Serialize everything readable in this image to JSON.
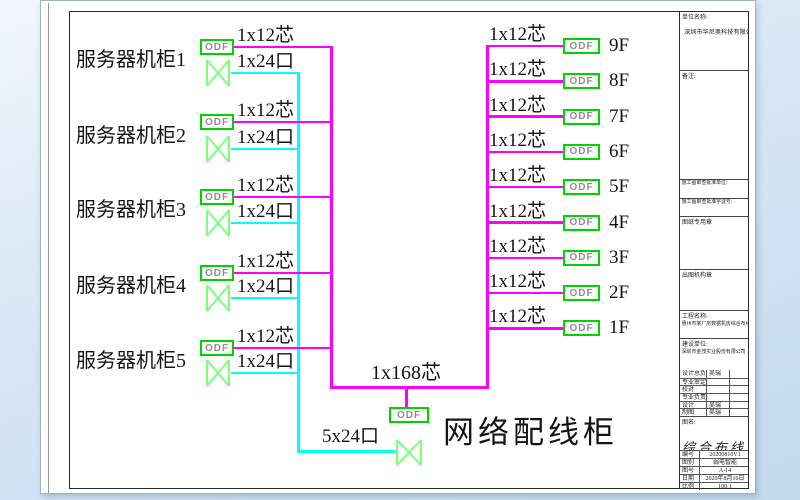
{
  "diagram": {
    "racks": [
      {
        "name": "服务器机柜1",
        "odf_label": "ODF",
        "fiber_label": "1x12芯",
        "copper_label": "1x24口"
      },
      {
        "name": "服务器机柜2",
        "odf_label": "ODF",
        "fiber_label": "1x12芯",
        "copper_label": "1x24口"
      },
      {
        "name": "服务器机柜3",
        "odf_label": "ODF",
        "fiber_label": "1x12芯",
        "copper_label": "1x24口"
      },
      {
        "name": "服务器机柜4",
        "odf_label": "ODF",
        "fiber_label": "1x12芯",
        "copper_label": "1x24口"
      },
      {
        "name": "服务器机柜5",
        "odf_label": "ODF",
        "fiber_label": "1x12芯",
        "copper_label": "1x24口"
      }
    ],
    "floors": [
      {
        "floor": "9F",
        "odf_label": "ODF",
        "fiber_label": "1x12芯"
      },
      {
        "floor": "8F",
        "odf_label": "ODF",
        "fiber_label": "1x12芯"
      },
      {
        "floor": "7F",
        "odf_label": "ODF",
        "fiber_label": "1x12芯"
      },
      {
        "floor": "6F",
        "odf_label": "ODF",
        "fiber_label": "1x12芯"
      },
      {
        "floor": "5F",
        "odf_label": "ODF",
        "fiber_label": "1x12芯"
      },
      {
        "floor": "4F",
        "odf_label": "ODF",
        "fiber_label": "1x12芯"
      },
      {
        "floor": "3F",
        "odf_label": "ODF",
        "fiber_label": "1x12芯"
      },
      {
        "floor": "2F",
        "odf_label": "ODF",
        "fiber_label": "1x12芯"
      },
      {
        "floor": "1F",
        "odf_label": "ODF",
        "fiber_label": "1x12芯"
      }
    ],
    "backbone": {
      "fiber_label": "1x168芯",
      "odf_label": "ODF",
      "copper_label": "5x24口",
      "cabinet_label": "网络配线柜"
    },
    "colors": {
      "fiber": "#ff00ff",
      "copper": "#00ffff",
      "odf_border": "#00d400",
      "panel_stroke": "#7dff7d"
    }
  },
  "title_block": {
    "org_label": "单位名称:",
    "org_name": "深圳市华尼奥科技有限公司",
    "remark_label": "备注:",
    "review_org_label": "施工图审查批准单位:",
    "review_no_label": "施工图审查批准字证号:",
    "drawing_seal_label": "图纸专用章",
    "issue_seal_label": "出图机构章",
    "project_label": "工程名称:",
    "project_name": "惠州市某厂房数据机房综合布线工程",
    "client_label": "建设单位:",
    "client_name": "深圳市金茂实业股份有限公司",
    "personnel": [
      {
        "role": "设计总负责",
        "name": "吴瑞"
      },
      {
        "role": "专业审定",
        "name": ""
      },
      {
        "role": "校对",
        "name": ""
      },
      {
        "role": "专业负责",
        "name": ""
      },
      {
        "role": "设计",
        "name": "吴瑞"
      },
      {
        "role": "制图",
        "name": "吴瑞"
      }
    ],
    "drawing_title_label": "图名:",
    "drawing_title": "综合布线",
    "meta": [
      {
        "label": "编号",
        "value": "20200810V1"
      },
      {
        "label": "图别",
        "value": "弱电智能"
      },
      {
        "label": "图号",
        "value": "A-14"
      },
      {
        "label": "日期",
        "value": "2020年8月10日"
      },
      {
        "label": "比例",
        "value": "100:1"
      }
    ]
  }
}
